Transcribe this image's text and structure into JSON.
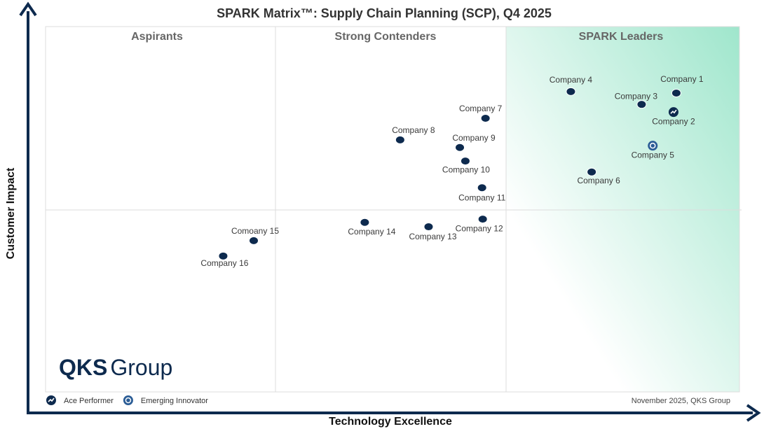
{
  "chart_data": {
    "type": "scatter",
    "title": "SPARK Matrix™: Supply Chain Planning (SCP), Q4 2025",
    "x_label": "Technology Excellence",
    "y_label": "Customer Impact",
    "quadrants": [
      "Aspirants",
      "Strong Contenders",
      "SPARK Leaders"
    ],
    "labels": [
      "Company 1",
      "Company 2",
      "Company 3",
      "Company 4",
      "Company 5",
      "Company 6",
      "Company 7",
      "Company 8",
      "Company 9",
      "Company 10",
      "Company 11",
      "Company 12",
      "Company 13",
      "Company 14",
      "Comoany 15",
      "Company 16"
    ],
    "x": [
      90.9,
      90.5,
      85.9,
      75.7,
      87.5,
      78.7,
      63.4,
      51.1,
      59.7,
      60.5,
      62.9,
      63.0,
      55.2,
      46.0,
      30.0,
      25.6
    ],
    "values": [
      81.8,
      76.6,
      78.7,
      82.2,
      67.4,
      60.2,
      74.9,
      69.0,
      66.9,
      63.2,
      55.9,
      47.3,
      45.2,
      46.4,
      41.4,
      37.2
    ],
    "color": "#0d2a4e",
    "xlim": [
      0,
      100
    ],
    "ylim": [
      0,
      100
    ],
    "legend": [
      {
        "name": "Ace Performer",
        "points": [
          1
        ]
      },
      {
        "name": "Emerging Innovator",
        "points": [
          4
        ]
      }
    ],
    "logo": {
      "bold": "QKS",
      "light": "Group"
    },
    "footnote": "November 2025, QKS Group"
  }
}
